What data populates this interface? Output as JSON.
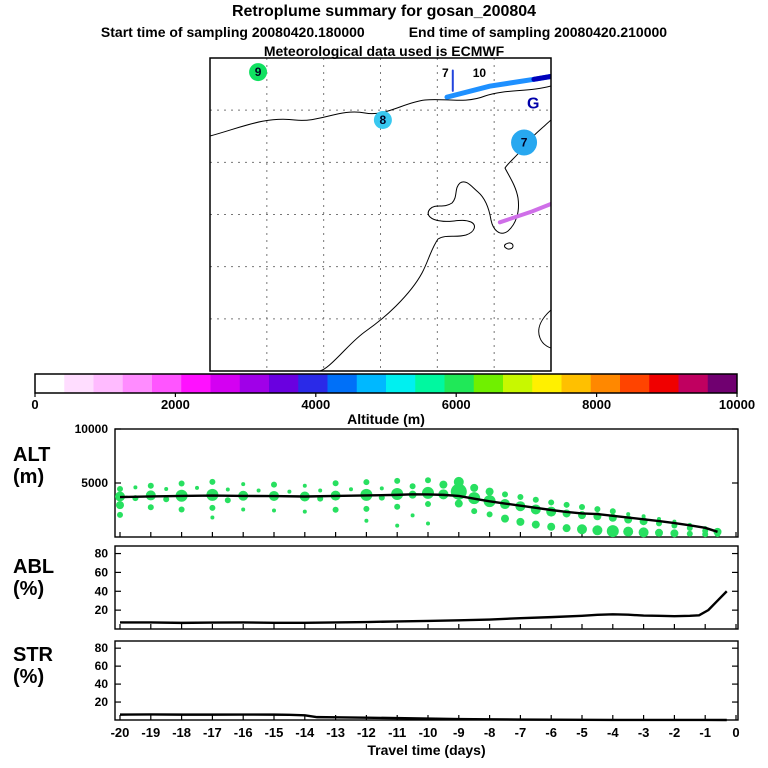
{
  "header": {
    "title": "Retroplume summary for gosan_200804",
    "start_label": "Start time of sampling 20080420.180000",
    "end_label": "End time of sampling 20080420.210000",
    "met_label": "Meteorological data used is ECMWF"
  },
  "map": {
    "grid_divisions": 6,
    "markers": [
      {
        "label": "9",
        "fx": 0.141,
        "fy": 0.045,
        "r": 9,
        "color": "#10e060"
      },
      {
        "label": "8",
        "fx": 0.507,
        "fy": 0.198,
        "r": 9,
        "color": "#38c8f0"
      },
      {
        "label": "7",
        "fx": 0.921,
        "fy": 0.27,
        "r": 13,
        "color": "#28a8f0"
      }
    ],
    "text_labels": [
      {
        "text": "7",
        "fx": 0.69,
        "fy": 0.048,
        "color": "#000000",
        "size": 12
      },
      {
        "text": "10",
        "fx": 0.79,
        "fy": 0.048,
        "color": "#000000",
        "size": 12
      },
      {
        "text": "G",
        "fx": 0.948,
        "fy": 0.148,
        "color": "#0000aa",
        "size": 16
      }
    ],
    "trajectories": [
      {
        "color": "#2244dd",
        "width": 2,
        "points": [
          [
            0.712,
            0.04
          ],
          [
            0.712,
            0.105
          ]
        ]
      },
      {
        "color": "#1e90ff",
        "width": 5,
        "points": [
          [
            0.695,
            0.125
          ],
          [
            0.82,
            0.09
          ],
          [
            0.95,
            0.068
          ],
          [
            1.06,
            0.048
          ]
        ]
      },
      {
        "color": "#0000bb",
        "width": 5,
        "points": [
          [
            0.95,
            0.068
          ],
          [
            1.06,
            0.048
          ]
        ]
      },
      {
        "color": "#cf6fe8",
        "width": 4,
        "points": [
          [
            0.85,
            0.525
          ],
          [
            0.945,
            0.49
          ],
          [
            1.01,
            0.462
          ]
        ]
      }
    ]
  },
  "colorbar": {
    "title": "Altitude (m)",
    "tick_labels": [
      "0",
      "2000",
      "4000",
      "6000",
      "8000",
      "10000"
    ],
    "colors": [
      "#ffffff",
      "#ffddff",
      "#ffbbff",
      "#ff8cff",
      "#ff55ff",
      "#ff11ff",
      "#d400f2",
      "#a000e8",
      "#6a00e0",
      "#2a2ae8",
      "#0070f8",
      "#00b8ff",
      "#00f0f0",
      "#00f8a0",
      "#20e858",
      "#70f000",
      "#c8f800",
      "#fff000",
      "#ffc000",
      "#ff8800",
      "#ff4400",
      "#f00000",
      "#c00060",
      "#700070"
    ]
  },
  "chart_data": {
    "type": "line",
    "x_label": "Travel time (days)",
    "x_range": [
      -20,
      0
    ],
    "x_ticks": [
      -20,
      -19,
      -18,
      -17,
      -16,
      -15,
      -14,
      -13,
      -12,
      -11,
      -10,
      -9,
      -8,
      -7,
      -6,
      -5,
      -4,
      -3,
      -2,
      -1,
      0
    ],
    "panels": [
      {
        "id": "alt",
        "label": "ALT",
        "unit": "(m)",
        "y_range": [
          0,
          10000
        ],
        "y_ticks": [
          5000,
          10000
        ],
        "y_tick_labels": [
          "5000",
          "10000"
        ],
        "dot_color": "#28e060",
        "line": {
          "x": [
            -20,
            -19,
            -18,
            -17,
            -16,
            -15,
            -14,
            -13,
            -12,
            -11,
            -10.5,
            -10,
            -9.5,
            -9,
            -8.5,
            -8,
            -7.5,
            -7,
            -6.5,
            -6,
            -5.5,
            -5,
            -4.5,
            -4,
            -3.5,
            -3,
            -2.5,
            -2,
            -1.5,
            -1,
            -0.6
          ],
          "y": [
            3700,
            3760,
            3800,
            3840,
            3800,
            3790,
            3750,
            3800,
            3850,
            3900,
            3950,
            3940,
            3900,
            3800,
            3550,
            3300,
            3100,
            2900,
            2700,
            2500,
            2320,
            2180,
            2120,
            1960,
            1800,
            1640,
            1480,
            1290,
            1080,
            850,
            480
          ]
        },
        "dots": [
          [
            -20,
            4450,
            3
          ],
          [
            -20,
            3750,
            5
          ],
          [
            -20,
            2950,
            4
          ],
          [
            -20,
            2050,
            3
          ],
          [
            -19.5,
            4600,
            2
          ],
          [
            -19.5,
            3600,
            3
          ],
          [
            -19,
            4750,
            3
          ],
          [
            -19,
            3850,
            5
          ],
          [
            -19,
            2750,
            3
          ],
          [
            -18.5,
            4450,
            2
          ],
          [
            -18.5,
            3500,
            3
          ],
          [
            -18,
            4950,
            3
          ],
          [
            -18,
            3820,
            6
          ],
          [
            -18,
            2550,
            3
          ],
          [
            -17.5,
            4550,
            2
          ],
          [
            -17,
            5100,
            3
          ],
          [
            -17,
            3900,
            6
          ],
          [
            -17,
            2700,
            3
          ],
          [
            -17,
            1800,
            2
          ],
          [
            -16.5,
            4400,
            2
          ],
          [
            -16.5,
            3400,
            3
          ],
          [
            -16,
            4900,
            2
          ],
          [
            -16,
            3820,
            5
          ],
          [
            -16,
            2550,
            2
          ],
          [
            -15.5,
            4300,
            2
          ],
          [
            -15,
            4850,
            3
          ],
          [
            -15,
            3800,
            5
          ],
          [
            -15,
            2450,
            2
          ],
          [
            -14.5,
            4200,
            2
          ],
          [
            -14,
            4750,
            2
          ],
          [
            -14,
            3750,
            5
          ],
          [
            -14,
            2350,
            2
          ],
          [
            -13.5,
            4300,
            2
          ],
          [
            -13.5,
            3550,
            3
          ],
          [
            -13,
            4980,
            3
          ],
          [
            -13,
            3830,
            5
          ],
          [
            -13,
            2520,
            3
          ],
          [
            -12.5,
            4420,
            2
          ],
          [
            -12,
            5080,
            3
          ],
          [
            -12,
            3900,
            6
          ],
          [
            -12,
            2600,
            3
          ],
          [
            -12,
            1500,
            2
          ],
          [
            -11.5,
            4500,
            2
          ],
          [
            -11.5,
            3650,
            3
          ],
          [
            -11,
            5200,
            3
          ],
          [
            -11,
            3980,
            6
          ],
          [
            -11,
            2800,
            3
          ],
          [
            -11,
            1050,
            2
          ],
          [
            -10.5,
            4700,
            3
          ],
          [
            -10.5,
            3920,
            4
          ],
          [
            -10.5,
            2000,
            2
          ],
          [
            -10,
            5250,
            3
          ],
          [
            -10,
            4080,
            6
          ],
          [
            -10,
            3050,
            3
          ],
          [
            -10,
            1250,
            2
          ],
          [
            -9.5,
            4850,
            4
          ],
          [
            -9.5,
            3950,
            5
          ],
          [
            -9,
            5100,
            5
          ],
          [
            -9,
            4200,
            8
          ],
          [
            -9,
            3100,
            4
          ],
          [
            -8.5,
            4550,
            4
          ],
          [
            -8.5,
            3600,
            6
          ],
          [
            -8.5,
            2400,
            3
          ],
          [
            -8,
            4200,
            4
          ],
          [
            -8,
            3320,
            6
          ],
          [
            -8,
            2100,
            3
          ],
          [
            -7.5,
            3950,
            3
          ],
          [
            -7.5,
            3050,
            5
          ],
          [
            -7.5,
            1700,
            4
          ],
          [
            -7,
            3700,
            3
          ],
          [
            -7,
            2850,
            5
          ],
          [
            -7,
            1400,
            4
          ],
          [
            -6.5,
            3450,
            3
          ],
          [
            -6.5,
            2550,
            5
          ],
          [
            -6.5,
            1150,
            4
          ],
          [
            -6,
            3200,
            3
          ],
          [
            -6,
            2350,
            5
          ],
          [
            -6,
            950,
            4
          ],
          [
            -5.5,
            2980,
            3
          ],
          [
            -5.5,
            2180,
            4
          ],
          [
            -5.5,
            820,
            4
          ],
          [
            -5,
            2780,
            3
          ],
          [
            -5,
            2020,
            4
          ],
          [
            -5,
            720,
            5
          ],
          [
            -4.5,
            2580,
            3
          ],
          [
            -4.5,
            1920,
            4
          ],
          [
            -4.5,
            620,
            5
          ],
          [
            -4,
            2380,
            3
          ],
          [
            -4,
            1780,
            4
          ],
          [
            -4,
            540,
            6
          ],
          [
            -3.5,
            2120,
            2
          ],
          [
            -3.5,
            1620,
            4
          ],
          [
            -3.5,
            500,
            5
          ],
          [
            -3,
            1920,
            2
          ],
          [
            -3,
            1460,
            4
          ],
          [
            -3,
            430,
            5
          ],
          [
            -2.5,
            1670,
            2
          ],
          [
            -2.5,
            1260,
            3
          ],
          [
            -2.5,
            390,
            4
          ],
          [
            -2,
            1420,
            2
          ],
          [
            -2,
            1060,
            3
          ],
          [
            -2,
            340,
            4
          ],
          [
            -1.5,
            1120,
            2
          ],
          [
            -1.5,
            830,
            3
          ],
          [
            -1.5,
            300,
            3
          ],
          [
            -1,
            820,
            2
          ],
          [
            -1,
            570,
            3
          ],
          [
            -1,
            260,
            3
          ],
          [
            -0.6,
            480,
            4
          ],
          [
            -0.6,
            280,
            3
          ]
        ]
      },
      {
        "id": "abl",
        "label": "ABL",
        "unit": "(%)",
        "y_range": [
          0,
          88
        ],
        "y_ticks": [
          20,
          40,
          60,
          80
        ],
        "y_tick_labels": [
          "20",
          "40",
          "60",
          "80"
        ],
        "line": {
          "x": [
            -20,
            -19,
            -18,
            -17,
            -16,
            -15,
            -14,
            -13,
            -12,
            -11,
            -10,
            -9,
            -8,
            -7,
            -6,
            -5,
            -4.5,
            -4,
            -3.5,
            -3,
            -2.5,
            -2,
            -1.5,
            -1.2,
            -0.9,
            -0.6,
            -0.3
          ],
          "y": [
            7,
            7,
            6.5,
            6.8,
            7,
            6.6,
            6.6,
            7,
            7.4,
            8,
            8.6,
            9.2,
            10,
            11.5,
            12.6,
            14,
            15,
            15.6,
            15.2,
            14.2,
            14,
            13.6,
            14,
            14.5,
            20,
            30,
            40
          ]
        }
      },
      {
        "id": "str",
        "label": "STR",
        "unit": "(%)",
        "y_range": [
          0,
          88
        ],
        "y_ticks": [
          20,
          40,
          60,
          80
        ],
        "y_tick_labels": [
          "20",
          "40",
          "60",
          "80"
        ],
        "line": {
          "x": [
            -20,
            -19,
            -18,
            -17,
            -16,
            -15,
            -14.5,
            -14,
            -13.6,
            -13,
            -12,
            -11,
            -10,
            -9,
            -8,
            -7,
            -6,
            -5,
            -4,
            -3,
            -2,
            -1,
            -0.3
          ],
          "y": [
            6,
            6.2,
            6,
            6,
            6.1,
            6,
            5.8,
            5.2,
            3.2,
            3,
            2.6,
            2.1,
            1.6,
            1.1,
            0.8,
            0.5,
            0.3,
            0.2,
            0.1,
            0.1,
            0.05,
            0.05,
            0
          ]
        }
      }
    ]
  }
}
